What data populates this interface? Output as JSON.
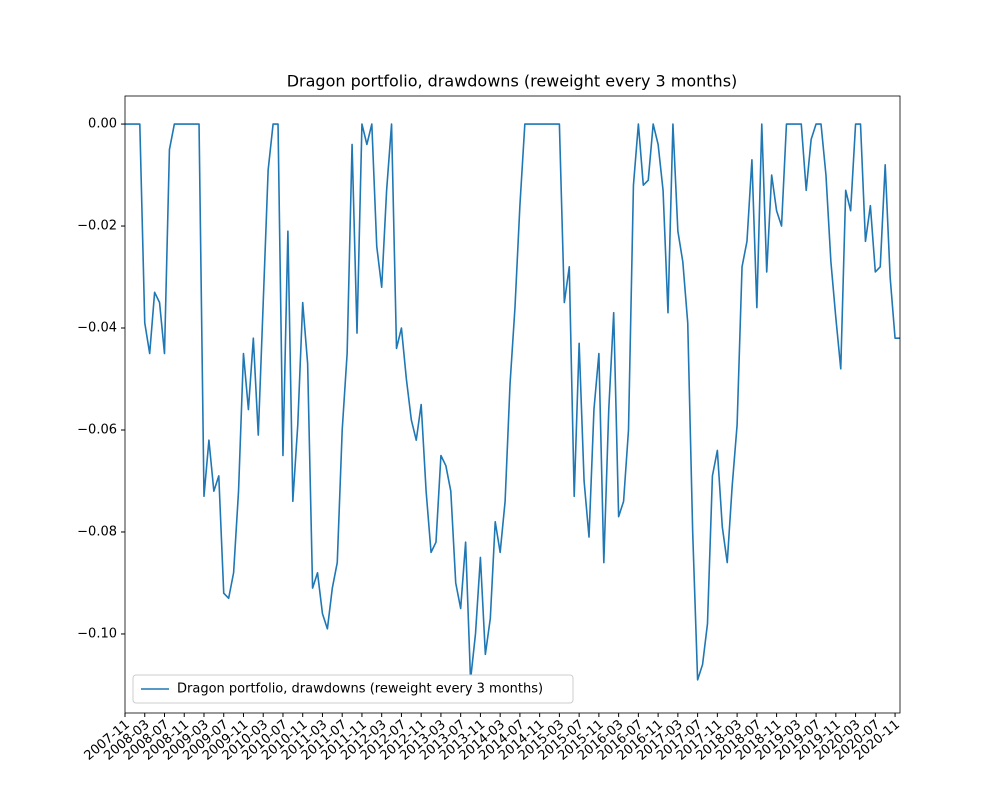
{
  "chart_data": {
    "type": "line",
    "title": "Dragon portfolio, drawdowns (reweight every 3 months)",
    "x": [
      "2007-11",
      "2007-12",
      "2008-01",
      "2008-02",
      "2008-03",
      "2008-04",
      "2008-05",
      "2008-06",
      "2008-07",
      "2008-08",
      "2008-09",
      "2008-10",
      "2008-11",
      "2008-12",
      "2009-01",
      "2009-02",
      "2009-03",
      "2009-04",
      "2009-05",
      "2009-06",
      "2009-07",
      "2009-08",
      "2009-09",
      "2009-10",
      "2009-11",
      "2009-12",
      "2010-01",
      "2010-02",
      "2010-03",
      "2010-04",
      "2010-05",
      "2010-06",
      "2010-07",
      "2010-08",
      "2010-09",
      "2010-10",
      "2010-11",
      "2010-12",
      "2011-01",
      "2011-02",
      "2011-03",
      "2011-04",
      "2011-05",
      "2011-06",
      "2011-07",
      "2011-08",
      "2011-09",
      "2011-10",
      "2011-11",
      "2011-12",
      "2012-01",
      "2012-02",
      "2012-03",
      "2012-04",
      "2012-05",
      "2012-06",
      "2012-07",
      "2012-08",
      "2012-09",
      "2012-10",
      "2012-11",
      "2012-12",
      "2013-01",
      "2013-02",
      "2013-03",
      "2013-04",
      "2013-05",
      "2013-06",
      "2013-07",
      "2013-08",
      "2013-09",
      "2013-10",
      "2013-11",
      "2013-12",
      "2014-01",
      "2014-02",
      "2014-03",
      "2014-04",
      "2014-05",
      "2014-06",
      "2014-07",
      "2014-08",
      "2014-09",
      "2014-10",
      "2014-11",
      "2014-12",
      "2015-01",
      "2015-02",
      "2015-03",
      "2015-04",
      "2015-05",
      "2015-06",
      "2015-07",
      "2015-08",
      "2015-09",
      "2015-10",
      "2015-11",
      "2015-12",
      "2016-01",
      "2016-02",
      "2016-03",
      "2016-04",
      "2016-05",
      "2016-06",
      "2016-07",
      "2016-08",
      "2016-09",
      "2016-10",
      "2016-11",
      "2016-12",
      "2017-01",
      "2017-02",
      "2017-03",
      "2017-04",
      "2017-05",
      "2017-06",
      "2017-07",
      "2017-08",
      "2017-09",
      "2017-10",
      "2017-11",
      "2017-12",
      "2018-01",
      "2018-02",
      "2018-03",
      "2018-04",
      "2018-05",
      "2018-06",
      "2018-07",
      "2018-08",
      "2018-09",
      "2018-10",
      "2018-11",
      "2018-12",
      "2019-01",
      "2019-02",
      "2019-03",
      "2019-04",
      "2019-05",
      "2019-06",
      "2019-07",
      "2019-08",
      "2019-09",
      "2019-10",
      "2019-11",
      "2019-12",
      "2020-01",
      "2020-02",
      "2020-03",
      "2020-04",
      "2020-05",
      "2020-06",
      "2020-07",
      "2020-08",
      "2020-09",
      "2020-10",
      "2020-11",
      "2020-12"
    ],
    "series": [
      {
        "name": "Dragon portfolio, drawdowns (reweight every 3 months)",
        "color": "#1f77b4",
        "values": [
          0,
          0,
          0,
          0,
          -0.039,
          -0.045,
          -0.033,
          -0.035,
          -0.045,
          -0.005,
          0,
          0,
          0,
          0,
          0,
          0,
          -0.073,
          -0.062,
          -0.072,
          -0.069,
          -0.092,
          -0.093,
          -0.088,
          -0.072,
          -0.045,
          -0.056,
          -0.042,
          -0.061,
          -0.035,
          -0.009,
          0,
          0,
          -0.065,
          -0.021,
          -0.074,
          -0.059,
          -0.035,
          -0.047,
          -0.091,
          -0.088,
          -0.096,
          -0.099,
          -0.091,
          -0.086,
          -0.06,
          -0.045,
          -0.004,
          -0.041,
          0,
          -0.004,
          0,
          -0.024,
          -0.032,
          -0.013,
          0,
          -0.044,
          -0.04,
          -0.05,
          -0.058,
          -0.062,
          -0.055,
          -0.072,
          -0.084,
          -0.082,
          -0.065,
          -0.067,
          -0.072,
          -0.09,
          -0.095,
          -0.082,
          -0.109,
          -0.1,
          -0.085,
          -0.104,
          -0.097,
          -0.078,
          -0.084,
          -0.074,
          -0.051,
          -0.036,
          -0.016,
          0,
          0,
          0,
          0,
          0,
          0,
          0,
          0,
          -0.035,
          -0.028,
          -0.073,
          -0.043,
          -0.07,
          -0.081,
          -0.056,
          -0.045,
          -0.086,
          -0.056,
          -0.037,
          -0.077,
          -0.074,
          -0.06,
          -0.012,
          0,
          -0.012,
          -0.011,
          0,
          -0.004,
          -0.013,
          -0.037,
          0,
          -0.021,
          -0.027,
          -0.039,
          -0.08,
          -0.109,
          -0.106,
          -0.098,
          -0.069,
          -0.064,
          -0.079,
          -0.086,
          -0.071,
          -0.059,
          -0.028,
          -0.023,
          -0.007,
          -0.036,
          0,
          -0.029,
          -0.01,
          -0.017,
          -0.02,
          0,
          0,
          0,
          0,
          -0.013,
          -0.003,
          0,
          0,
          -0.01,
          -0.027,
          -0.038,
          -0.048,
          -0.013,
          -0.017,
          0,
          0,
          -0.023,
          -0.016,
          -0.029,
          -0.028,
          -0.008,
          -0.03,
          -0.042,
          -0.042
        ]
      }
    ],
    "xticks": [
      "2007-11",
      "2008-03",
      "2008-07",
      "2008-11",
      "2009-03",
      "2009-07",
      "2009-11",
      "2010-03",
      "2010-07",
      "2010-11",
      "2011-03",
      "2011-07",
      "2011-11",
      "2012-03",
      "2012-07",
      "2012-11",
      "2013-03",
      "2013-07",
      "2013-11",
      "2014-03",
      "2014-07",
      "2014-11",
      "2015-03",
      "2015-07",
      "2015-11",
      "2016-03",
      "2016-07",
      "2016-11",
      "2017-03",
      "2017-07",
      "2017-11",
      "2018-03",
      "2018-07",
      "2018-11",
      "2019-03",
      "2019-07",
      "2019-11",
      "2020-03",
      "2020-07",
      "2020-11"
    ],
    "ylim": [
      -0.1155,
      0.0055
    ],
    "yticks": [
      {
        "value": 0,
        "label": "0.00"
      },
      {
        "value": -0.02,
        "label": "−0.02"
      },
      {
        "value": -0.04,
        "label": "−0.04"
      },
      {
        "value": -0.06,
        "label": "−0.06"
      },
      {
        "value": -0.08,
        "label": "−0.08"
      },
      {
        "value": -0.1,
        "label": "−0.10"
      }
    ],
    "legend": "lower left"
  }
}
